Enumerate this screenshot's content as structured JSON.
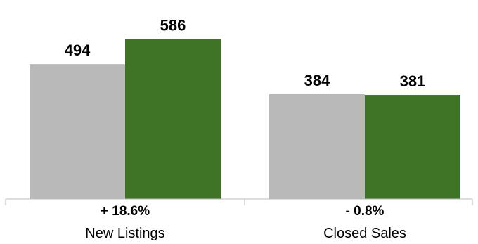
{
  "chart_data": {
    "type": "bar",
    "categories": [
      "New Listings",
      "Closed Sales"
    ],
    "changes": [
      "+ 18.6%",
      "- 0.8%"
    ],
    "series": [
      {
        "values": [
          494,
          384
        ],
        "color": "#b9b9b9"
      },
      {
        "values": [
          586,
          381
        ],
        "color": "#3f7426"
      }
    ],
    "ylim": [
      0,
      600
    ],
    "grid": false,
    "legend": "none",
    "axis_color": "#bbbbbb"
  }
}
